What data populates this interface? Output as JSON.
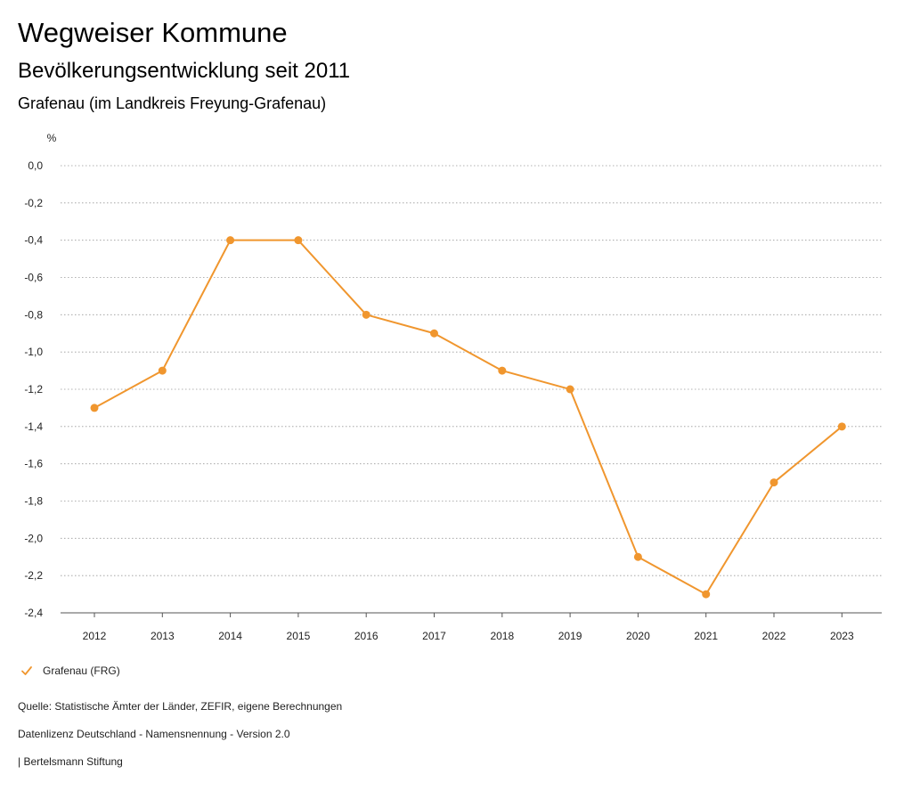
{
  "header": {
    "title": "Wegweiser Kommune",
    "subtitle": "Bevölkerungsentwicklung seit 2011",
    "region": "Grafenau (im Landkreis Freyung-Grafenau)"
  },
  "colors": {
    "series": "#f0962e",
    "grid": "#999999"
  },
  "chart_data": {
    "type": "line",
    "title": "Bevölkerungsentwicklung seit 2011",
    "xlabel": "",
    "ylabel": "%",
    "categories": [
      "2012",
      "2013",
      "2014",
      "2015",
      "2016",
      "2017",
      "2018",
      "2019",
      "2020",
      "2021",
      "2022",
      "2023"
    ],
    "series": [
      {
        "name": "Grafenau (FRG)",
        "values": [
          -1.3,
          -1.1,
          -0.4,
          -0.4,
          -0.8,
          -0.9,
          -1.1,
          -1.2,
          -2.1,
          -2.3,
          -1.7,
          -1.4
        ]
      }
    ],
    "ylim": [
      -2.4,
      0.0
    ],
    "yticks": [
      0.0,
      -0.2,
      -0.4,
      -0.6,
      -0.8,
      -1.0,
      -1.2,
      -1.4,
      -1.6,
      -1.8,
      -2.0,
      -2.2,
      -2.4
    ],
    "ytick_labels": [
      "0,0",
      "-0,2",
      "-0,4",
      "-0,6",
      "-0,8",
      "-1,0",
      "-1,2",
      "-1,4",
      "-1,6",
      "-1,8",
      "-2,0",
      "-2,2",
      "-2,4"
    ],
    "grid": true,
    "legend_position": "bottom-left"
  },
  "legend": {
    "label": "Grafenau (FRG)"
  },
  "footer": {
    "source": "Quelle: Statistische Ämter der Länder, ZEFIR, eigene Berechnungen",
    "license": "Datenlizenz Deutschland - Namensnennung - Version 2.0",
    "publisher": "| Bertelsmann Stiftung"
  }
}
